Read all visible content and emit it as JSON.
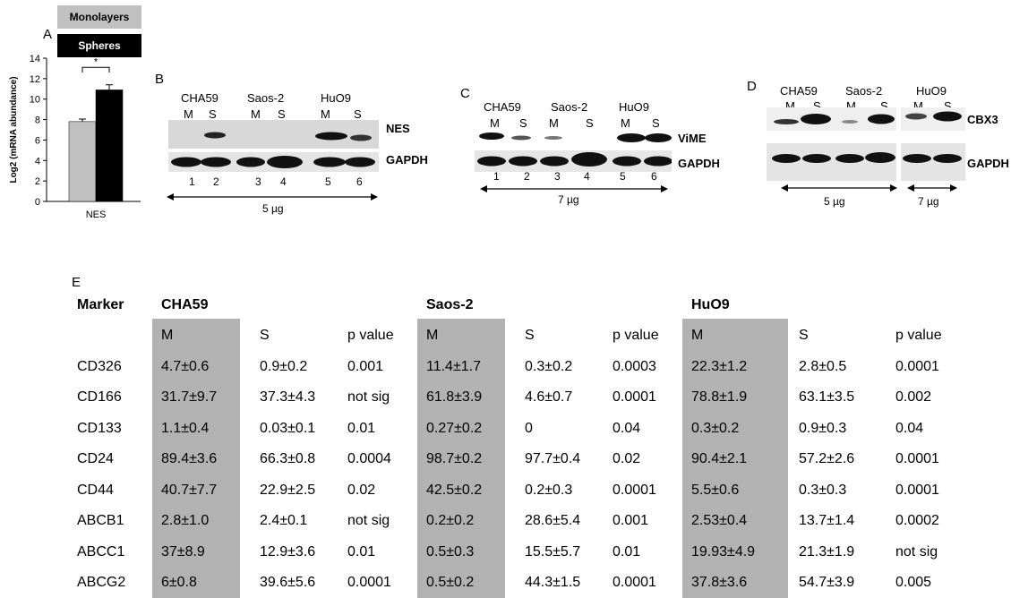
{
  "panelA": {
    "letter": "A",
    "legend": [
      {
        "label": "Monolayers",
        "color": "#c0c0c0",
        "textColor": "#000000"
      },
      {
        "label": "Spheres",
        "color": "#000000",
        "textColor": "#ffffff"
      }
    ],
    "significance": "*"
  },
  "chart_data": {
    "type": "bar",
    "categories": [
      "NES"
    ],
    "series": [
      {
        "name": "Monolayers",
        "values": [
          7.8
        ],
        "error": [
          0.25
        ],
        "color": "#c0c0c0"
      },
      {
        "name": "Spheres",
        "values": [
          10.9
        ],
        "error": [
          0.5
        ],
        "color": "#000000"
      }
    ],
    "ylabel": "Log2 (mRNA abundance)",
    "xlabel": "",
    "ylim": [
      0,
      14
    ],
    "yticks": [
      "0",
      "2",
      "4",
      "6",
      "8",
      "10",
      "12",
      "14"
    ],
    "grid": false,
    "legend_position": "top"
  },
  "panelB": {
    "letter": "B",
    "cellLines": [
      "CHA59",
      "Saos-2",
      "HuO9"
    ],
    "lanes": [
      "M",
      "S",
      "M",
      "S",
      "M",
      "S"
    ],
    "proteins": [
      "NES",
      "GAPDH"
    ],
    "laneNumbers": [
      "1",
      "2",
      "3",
      "4",
      "5",
      "6"
    ],
    "amount": "5 µg"
  },
  "panelC": {
    "letter": "C",
    "cellLines": [
      "CHA59",
      "Saos-2",
      "HuO9"
    ],
    "lanes": [
      "M",
      "S",
      "M",
      "S",
      "M",
      "S"
    ],
    "proteins": [
      "ViME",
      "GAPDH"
    ],
    "laneNumbers": [
      "1",
      "2",
      "3",
      "4",
      "5",
      "6"
    ],
    "amount": "7 µg"
  },
  "panelD": {
    "letter": "D",
    "cellLines": [
      "CHA59",
      "Saos-2",
      "HuO9"
    ],
    "lanes": [
      "M",
      "S",
      "M",
      "S",
      "M",
      "S"
    ],
    "proteins": [
      "CBX3",
      "GAPDH"
    ],
    "amounts": [
      "5 µg",
      "7 µg"
    ]
  },
  "panelE": {
    "letter": "E",
    "markerHeader": "Marker",
    "groups": [
      "CHA59",
      "Saos-2",
      "HuO9"
    ],
    "subHeaders": [
      "M",
      "S",
      "p value",
      "M",
      "S",
      "p value",
      "M",
      "S",
      "p value"
    ],
    "rows": [
      {
        "marker": "CD326",
        "values": [
          "4.7±0.6",
          "0.9±0.2",
          "0.001",
          "11.4±1.7",
          "0.3±0.2",
          "0.0003",
          "22.3±1.2",
          "2.8±0.5",
          "0.0001"
        ]
      },
      {
        "marker": "CD166",
        "values": [
          "31.7±9.7",
          "37.3±4.3",
          "not sig",
          "61.8±3.9",
          "4.6±0.7",
          "0.0001",
          "78.8±1.9",
          "63.1±3.5",
          "0.002"
        ]
      },
      {
        "marker": "CD133",
        "values": [
          "1.1±0.4",
          "0.03±0.1",
          "0.01",
          "0.27±0.2",
          "0",
          "0.04",
          "0.3±0.2",
          "0.9±0.3",
          "0.04"
        ]
      },
      {
        "marker": "CD24",
        "values": [
          "89.4±3.6",
          "66.3±0.8",
          "0.0004",
          "98.7±0.2",
          "97.7±0.4",
          "0.02",
          "90.4±2.1",
          "57.2±2.6",
          "0.0001"
        ]
      },
      {
        "marker": "CD44",
        "values": [
          "40.7±7.7",
          "22.9±2.5",
          "0.02",
          "42.5±0.2",
          "0.2±0.3",
          "0.0001",
          "5.5±0.6",
          "0.3±0.3",
          "0.0001"
        ]
      },
      {
        "marker": "ABCB1",
        "values": [
          "2.8±1.0",
          "2.4±0.1",
          "not sig",
          "0.2±0.2",
          "28.6±5.4",
          "0.001",
          "2.53±0.4",
          "13.7±1.4",
          "0.0002"
        ]
      },
      {
        "marker": "ABCC1",
        "values": [
          "37±8.9",
          "12.9±3.6",
          "0.01",
          "0.5±0.3",
          "15.5±5.7",
          "0.01",
          "19.93±4.9",
          "21.3±1.9",
          "not sig"
        ]
      },
      {
        "marker": "ABCG2",
        "values": [
          "6±0.8",
          "39.6±5.6",
          "0.0001",
          "0.5±0.2",
          "44.3±1.5",
          "0.0001",
          "37.8±3.6",
          "54.7±3.9",
          "0.005"
        ]
      }
    ]
  }
}
